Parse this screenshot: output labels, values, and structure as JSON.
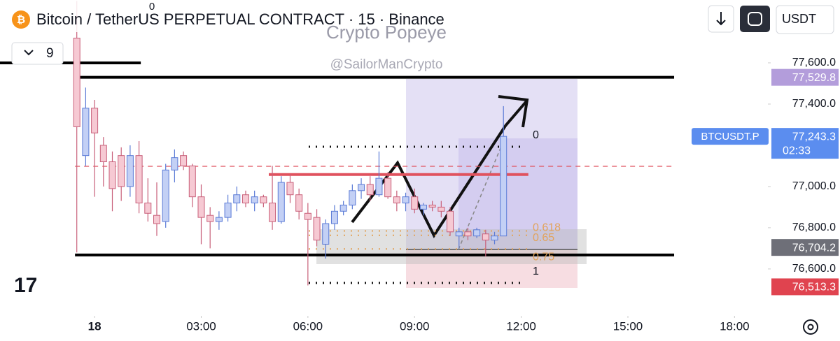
{
  "chart_data": {
    "type": "candlestick",
    "title": "Bitcoin / TetherUS PERPETUAL CONTRACT · 15 · Binance",
    "watermark": "Crypto Popeye",
    "handle": "@SailorManCrypto",
    "top_note": "0",
    "indicator_count": "9",
    "currency": "USDT",
    "x": [
      -0.5,
      -0.25,
      0,
      0.25,
      0.5,
      0.75,
      1,
      1.25,
      1.5,
      1.75,
      2,
      2.25,
      2.5,
      2.75,
      3,
      3.25,
      3.5,
      3.75,
      4,
      4.25,
      4.5,
      4.75,
      5,
      5.25,
      5.5,
      5.75,
      6,
      6.25,
      6.5,
      6.75,
      7,
      7.25,
      7.5,
      7.75,
      8,
      8.25,
      8.5,
      8.75,
      9,
      9.25,
      9.5,
      9.75,
      10,
      10.25,
      10.5,
      10.75,
      11,
      11.25,
      11.5
    ],
    "open": [
      77720,
      77150,
      77380,
      77200,
      77120,
      77150,
      77000,
      77150,
      76920,
      76860,
      76830,
      77080,
      77150,
      77100,
      76950,
      76860,
      76830,
      76850,
      76920,
      76960,
      76920,
      76950,
      76920,
      76830,
      77020,
      76960,
      76870,
      76850,
      76720,
      76820,
      76880,
      76910,
      76980,
      77010,
      76960,
      77040,
      76950,
      76920,
      76950,
      76890,
      76910,
      76900,
      76880,
      76760,
      76780,
      76760,
      76770,
      76740,
      76760
    ],
    "high": [
      77900,
      77480,
      77420,
      77240,
      77170,
      77190,
      77200,
      77220,
      77040,
      77020,
      77110,
      77180,
      77170,
      77110,
      77010,
      76900,
      76880,
      76960,
      77000,
      76980,
      76980,
      76960,
      77100,
      77050,
      77060,
      76990,
      76920,
      76890,
      76840,
      76910,
      76930,
      77010,
      77040,
      77050,
      77170,
      77070,
      76980,
      76970,
      76990,
      76920,
      76930,
      76930,
      76900,
      76800,
      76800,
      76800,
      76790,
      76780,
      77390
    ],
    "low": [
      76680,
      77100,
      76950,
      77000,
      76880,
      76930,
      76950,
      76870,
      76830,
      76760,
      76800,
      77020,
      77080,
      76900,
      76720,
      76700,
      76790,
      76830,
      76880,
      76900,
      76880,
      76900,
      76790,
      76820,
      76920,
      76840,
      76520,
      76710,
      76650,
      76790,
      76860,
      76890,
      76940,
      76930,
      76950,
      76940,
      76880,
      76880,
      76870,
      76860,
      76880,
      76850,
      76760,
      76700,
      76740,
      76750,
      76660,
      76720,
      76760
    ],
    "close": [
      77290,
      77380,
      77260,
      77120,
      76990,
      77000,
      77150,
      76920,
      76870,
      76820,
      77080,
      77140,
      77100,
      76950,
      76850,
      76830,
      76850,
      76920,
      76960,
      76920,
      76950,
      76920,
      76830,
      77020,
      76960,
      76880,
      76840,
      76740,
      76820,
      76880,
      76910,
      76980,
      77010,
      76960,
      77040,
      76950,
      76920,
      76950,
      76890,
      76910,
      76900,
      76880,
      76780,
      76780,
      76760,
      76790,
      76740,
      76760,
      77243.3
    ],
    "up_color": "#5b7bd6",
    "down_color": "#c8607a",
    "xlim": [
      -2.66,
      18.8
    ],
    "ylim": [
      76447,
      77905
    ],
    "xticks": [
      {
        "value": 0,
        "label": "18"
      },
      {
        "value": 3,
        "label": "03:00"
      },
      {
        "value": 6,
        "label": "06:00"
      },
      {
        "value": 9,
        "label": "09:00"
      },
      {
        "value": 12,
        "label": "12:00"
      },
      {
        "value": 15,
        "label": "15:00"
      },
      {
        "value": 18,
        "label": "18:00"
      }
    ],
    "yticks": [
      {
        "value": 76600,
        "label": "76,600.0"
      },
      {
        "value": 76800,
        "label": "76,800.0"
      },
      {
        "value": 77000,
        "label": "77,000.0"
      },
      {
        "value": 77400,
        "label": "77,400.0"
      },
      {
        "value": 77600,
        "label": "77,600.0"
      }
    ],
    "price_tags": [
      {
        "value": 77529.8,
        "label": "77,529.8",
        "color": "#b39ddb"
      },
      {
        "value": 76704.2,
        "label": "76,704.2",
        "color": "#6e6f78"
      },
      {
        "value": 76513.3,
        "label": "76,513.3",
        "color": "#e0434f"
      }
    ],
    "last_price": {
      "value": 77243.3,
      "label": "77,243.3",
      "symbol": "BTCUSDT.P",
      "countdown": "02:33",
      "color": "#5b8def"
    },
    "lines": [
      {
        "price": 77600,
        "from": -2.7,
        "to": 1.3,
        "color": "#000000",
        "dashed": false
      },
      {
        "price": 77529.8,
        "from": -0.55,
        "to": 16.3,
        "color": "#000000",
        "dashed": false
      },
      {
        "price": 76668,
        "from": -0.55,
        "to": 16.3,
        "color": "#000000",
        "dashed": false
      },
      {
        "price": 77058,
        "from": 4.9,
        "to": 12.2,
        "color": "#e0525e",
        "dashed": false
      },
      {
        "price": 77098,
        "from": -0.55,
        "to": 16.3,
        "color": "#e0525e",
        "dashed": true
      }
    ],
    "fib": {
      "start": 77193,
      "end": 76532,
      "levels": [
        0,
        0.618,
        0.65,
        0.75,
        1
      ]
    }
  }
}
